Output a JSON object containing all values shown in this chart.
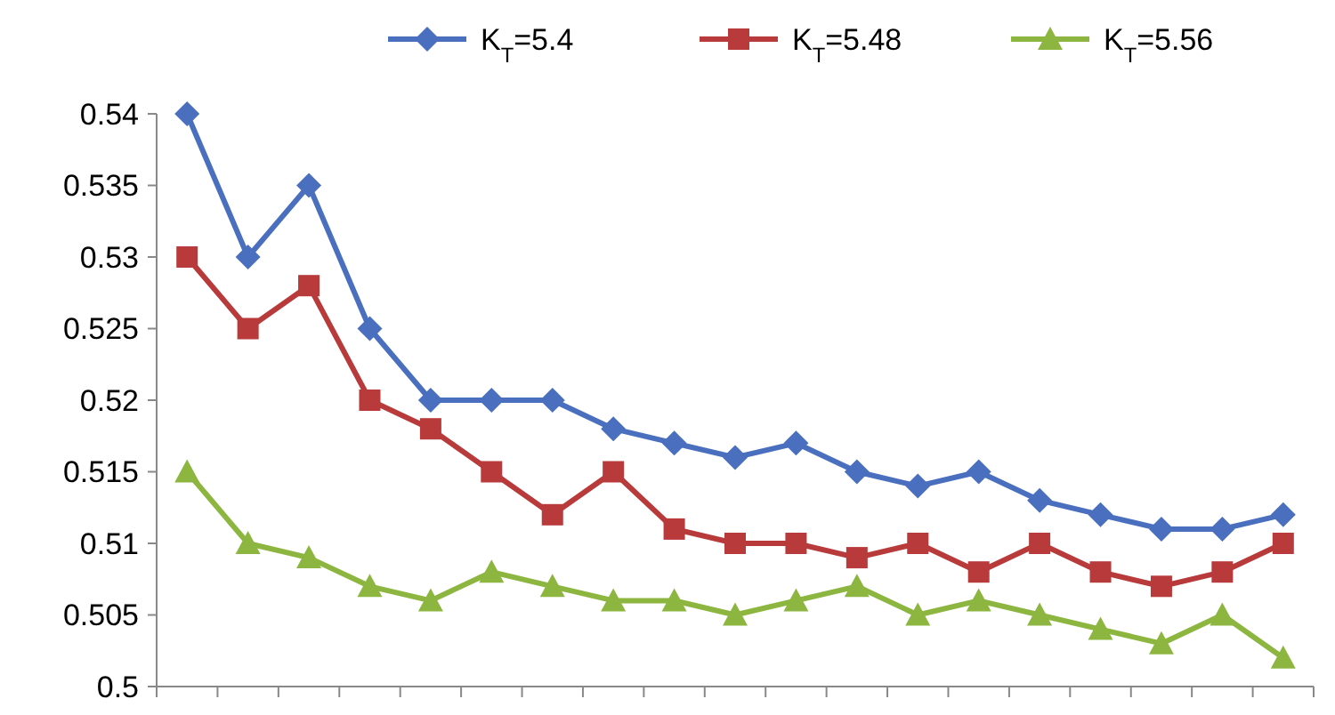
{
  "chart_data": {
    "type": "line",
    "categories": [
      null,
      null,
      null,
      null,
      null,
      null,
      null,
      null,
      null,
      null,
      null,
      null,
      null,
      null,
      null,
      null,
      null,
      null,
      null
    ],
    "ylim": [
      0.5,
      0.54
    ],
    "yticks": [
      {
        "value": 0.5,
        "label": "0.5"
      },
      0.505,
      {
        "value": 0.51,
        "label": "0.51"
      },
      0.515,
      {
        "value": 0.52,
        "label": "0.52"
      },
      0.525,
      {
        "value": 0.53,
        "label": "0.53"
      },
      0.535,
      {
        "value": 0.54,
        "label": "0.54"
      }
    ],
    "grid": false,
    "legend": "top",
    "tick_labels": "y",
    "series": [
      {
        "name": "K$_{T}$=5.4",
        "color": "#4a6fbf",
        "marker": "diamond",
        "values": [
          0.54,
          0.53,
          0.535,
          0.525,
          0.52,
          0.52,
          0.52,
          0.518,
          0.517,
          0.516,
          0.517,
          0.515,
          0.514,
          0.515,
          0.513,
          0.512,
          0.511,
          0.511,
          0.512
        ]
      },
      {
        "name": "K$_{T}$=5.48",
        "color": "#b83a3a",
        "marker": "square",
        "values": [
          0.53,
          0.525,
          0.528,
          0.52,
          0.518,
          0.515,
          0.512,
          0.515,
          0.511,
          0.51,
          0.51,
          0.509,
          0.51,
          0.508,
          0.51,
          0.508,
          0.507,
          0.508,
          0.51
        ]
      },
      {
        "name": "K$_{T}$=5.56",
        "color": "#8db640",
        "marker": "triangle",
        "values": [
          0.515,
          0.51,
          0.509,
          0.507,
          0.506,
          0.508,
          0.507,
          0.506,
          0.506,
          0.505,
          0.506,
          0.507,
          0.505,
          0.506,
          0.505,
          0.504,
          0.503,
          0.505,
          0.502
        ]
      }
    ]
  }
}
